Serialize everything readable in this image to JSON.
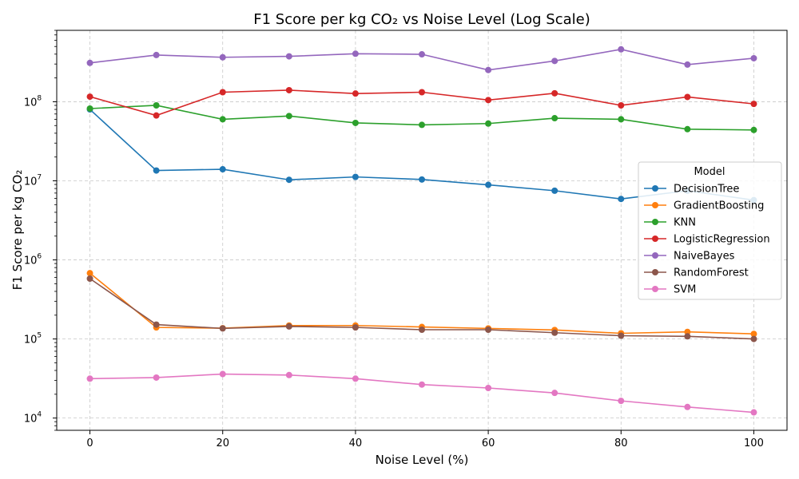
{
  "chart_data": {
    "type": "line",
    "title": "F1 Score per kg CO₂ vs Noise Level (Log Scale)",
    "xlabel": "Noise Level (%)",
    "ylabel": "F1 Score per kg CO₂",
    "yscale": "log",
    "xlim": [
      -5,
      105
    ],
    "ylim": [
      7000,
      800000000
    ],
    "x_ticks": [
      0,
      20,
      40,
      60,
      80,
      100
    ],
    "x_tick_labels": [
      "0",
      "20",
      "40",
      "60",
      "80",
      "100"
    ],
    "y_ticks": [
      10000,
      100000,
      1000000,
      10000000,
      100000000
    ],
    "y_tick_labels": [
      {
        "base": "10",
        "exp": "4"
      },
      {
        "base": "10",
        "exp": "5"
      },
      {
        "base": "10",
        "exp": "6"
      },
      {
        "base": "10",
        "exp": "7"
      },
      {
        "base": "10",
        "exp": "8"
      }
    ],
    "grid": true,
    "legend_title": "Model",
    "legend_position": "center-right",
    "x": [
      0,
      10,
      20,
      30,
      40,
      50,
      60,
      70,
      80,
      90,
      100
    ],
    "series": [
      {
        "name": "DecisionTree",
        "color": "#1f77b4",
        "values": [
          80000000,
          13500000,
          14000000,
          10300000,
          11200000,
          10400000,
          8900000,
          7500000,
          5900000,
          7500000,
          5700000
        ]
      },
      {
        "name": "GradientBoosting",
        "color": "#ff7f0e",
        "values": [
          680000,
          140000,
          137000,
          148000,
          148000,
          142000,
          136000,
          130000,
          118000,
          123000,
          116000
        ]
      },
      {
        "name": "KNN",
        "color": "#2ca02c",
        "values": [
          82000000,
          90000000,
          60000000,
          66000000,
          54000000,
          51000000,
          53000000,
          62000000,
          60000000,
          45000000,
          44000000
        ]
      },
      {
        "name": "LogisticRegression",
        "color": "#d62728",
        "values": [
          116000000,
          67000000,
          132000000,
          140000000,
          127000000,
          132000000,
          105000000,
          128000000,
          90000000,
          115000000,
          94000000
        ]
      },
      {
        "name": "NaiveBayes",
        "color": "#9467bd",
        "values": [
          310000000,
          390000000,
          365000000,
          375000000,
          405000000,
          398000000,
          252000000,
          328000000,
          460000000,
          295000000,
          355000000
        ]
      },
      {
        "name": "RandomForest",
        "color": "#8c564b",
        "values": [
          580000,
          152000,
          136000,
          144000,
          140000,
          131000,
          131000,
          120000,
          110000,
          108000,
          100000
        ]
      },
      {
        "name": "SVM",
        "color": "#e377c2",
        "values": [
          31500,
          32500,
          36000,
          35000,
          31500,
          26500,
          24000,
          20800,
          16500,
          13800,
          11800
        ]
      }
    ]
  }
}
